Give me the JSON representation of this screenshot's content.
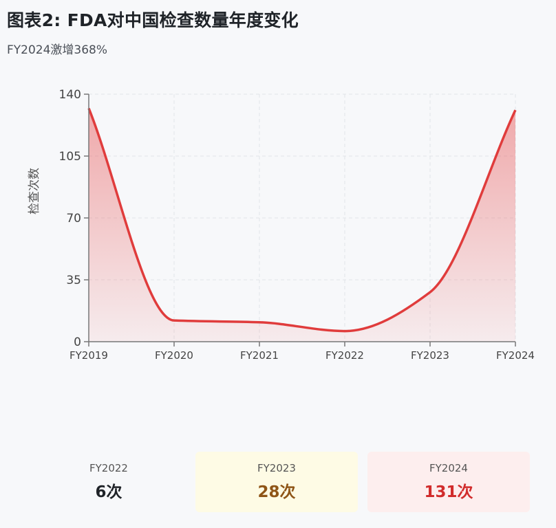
{
  "title": "图表2: FDA对中国检查数量年度变化",
  "subtitle": "FY2024激增368%",
  "chart_data": {
    "type": "area",
    "title": "图表2: FDA对中国检查数量年度变化",
    "subtitle": "FY2024激增368%",
    "xlabel": "",
    "ylabel": "检查次数",
    "categories": [
      "FY2019",
      "FY2020",
      "FY2021",
      "FY2022",
      "FY2023",
      "FY2024"
    ],
    "values": [
      132,
      12,
      11,
      6,
      28,
      131
    ],
    "ylim": [
      0,
      140
    ],
    "yticks": [
      "0",
      "35",
      "70",
      "105",
      "140"
    ],
    "grid": true,
    "line_color": "#e03c3c",
    "fill_color": "#e8595a"
  },
  "cards": [
    {
      "label": "FY2022",
      "value": "6次",
      "color": "#1f2328",
      "bg": "transparent"
    },
    {
      "label": "FY2023",
      "value": "28次",
      "color": "#8f5517",
      "bg": "#fefbe5"
    },
    {
      "label": "FY2024",
      "value": "131次",
      "color": "#d12c2c",
      "bg": "#fdeeee"
    }
  ]
}
